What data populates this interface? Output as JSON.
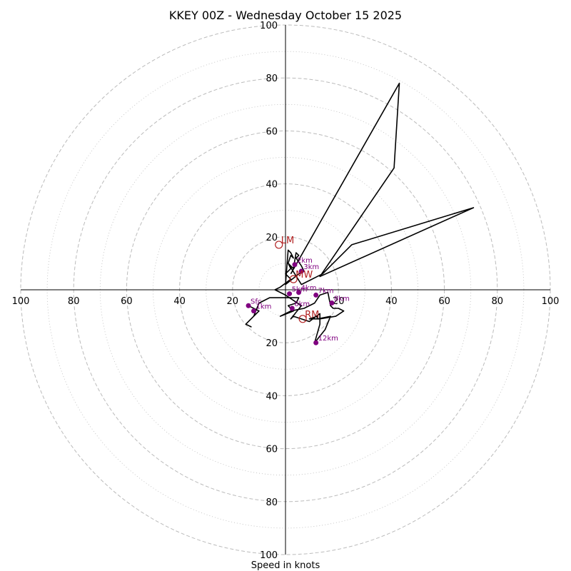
{
  "chart_data": {
    "type": "line",
    "title": "KKEY 00Z - Wednesday October 15 2025",
    "xlabel": "Speed in knots",
    "ylabel": "",
    "xlim": [
      -100,
      100
    ],
    "ylim": [
      -100,
      100
    ],
    "rings_dashed": [
      20,
      40,
      60,
      80,
      100
    ],
    "rings_dotted": [
      10,
      30,
      50,
      70,
      90
    ],
    "x_tick_labels": [
      "100",
      "80",
      "60",
      "40",
      "20",
      "20",
      "40",
      "60",
      "80",
      "100"
    ],
    "x_tick_values": [
      -100,
      -80,
      -60,
      -40,
      -20,
      20,
      40,
      60,
      80,
      100
    ],
    "y_tick_labels": [
      "100",
      "80",
      "60",
      "40",
      "20",
      "20",
      "40",
      "60",
      "80",
      "100"
    ],
    "y_tick_values": [
      100,
      80,
      60,
      40,
      20,
      -20,
      -40,
      -60,
      -80,
      -100
    ],
    "colors": {
      "hodo": "#000000",
      "height_marker": "#800080",
      "motion_marker": "#b22222",
      "grid": "#bbbbbb"
    },
    "hodograph": [
      [
        -14,
        -6
      ],
      [
        -10,
        -8
      ],
      [
        -12,
        -10
      ],
      [
        -15,
        -13
      ],
      [
        -13,
        -14
      ],
      [
        -15,
        -13
      ],
      [
        -12,
        -10
      ],
      [
        -10,
        -5
      ],
      [
        -6,
        -3
      ],
      [
        -2,
        -3
      ],
      [
        5,
        -3
      ],
      [
        4,
        -5
      ],
      [
        1,
        -6
      ],
      [
        3,
        -8
      ],
      [
        -2,
        -10
      ],
      [
        2,
        -8
      ],
      [
        7,
        -7
      ],
      [
        11,
        -5
      ],
      [
        13,
        -2
      ],
      [
        16,
        -1
      ],
      [
        17,
        -6
      ],
      [
        18,
        -7
      ],
      [
        19,
        -7
      ],
      [
        20,
        -7
      ],
      [
        22,
        -8
      ],
      [
        19,
        -10
      ],
      [
        13,
        -11
      ],
      [
        9,
        -11
      ],
      [
        12,
        -10
      ],
      [
        12,
        -11
      ],
      [
        17,
        -10
      ],
      [
        15,
        -15
      ],
      [
        11,
        -20
      ],
      [
        13,
        -13
      ],
      [
        13,
        -9
      ],
      [
        9,
        -12
      ],
      [
        3,
        -10
      ],
      [
        2,
        -11
      ],
      [
        6,
        -6
      ],
      [
        0,
        -2
      ],
      [
        -4,
        0
      ],
      [
        -2,
        1
      ],
      [
        2,
        4
      ],
      [
        0,
        6
      ],
      [
        2,
        8
      ],
      [
        1,
        10
      ],
      [
        2,
        13
      ],
      [
        3,
        12
      ],
      [
        2,
        14
      ],
      [
        1,
        15
      ],
      [
        0,
        2
      ],
      [
        5,
        6
      ],
      [
        7,
        7
      ],
      [
        6,
        9
      ],
      [
        4,
        12
      ],
      [
        5,
        13
      ],
      [
        4,
        14
      ],
      [
        3,
        8
      ],
      [
        1,
        10
      ],
      [
        6,
        2
      ],
      [
        14,
        6
      ],
      [
        25,
        17
      ],
      [
        71,
        31
      ],
      [
        13,
        5
      ],
      [
        41,
        46
      ],
      [
        43,
        78
      ],
      [
        2,
        6
      ]
    ],
    "height_markers": [
      {
        "label": "Sfc",
        "u": -14,
        "v": -6
      },
      {
        "label": "1km",
        "u": -12,
        "v": -8
      },
      {
        "label": "2km",
        "u": 3.5,
        "v": 9.5
      },
      {
        "label": "3km",
        "u": 6,
        "v": 7
      },
      {
        "label": "4km",
        "u": 5,
        "v": -1
      },
      {
        "label": "5km",
        "u": 1.5,
        "v": -1.5
      },
      {
        "label": "6km",
        "u": 2.5,
        "v": -7
      },
      {
        "label": "7km",
        "u": 11.5,
        "v": -2
      },
      {
        "label": "8km",
        "u": 17.5,
        "v": -5
      },
      {
        "label": "12km",
        "u": 11.5,
        "v": -20
      }
    ],
    "storm_motion": [
      {
        "label": "LM",
        "u": -2.5,
        "v": 17
      },
      {
        "label": "MW",
        "u": 3,
        "v": 4
      },
      {
        "label": "RM",
        "u": 6.5,
        "v": -11
      }
    ]
  }
}
